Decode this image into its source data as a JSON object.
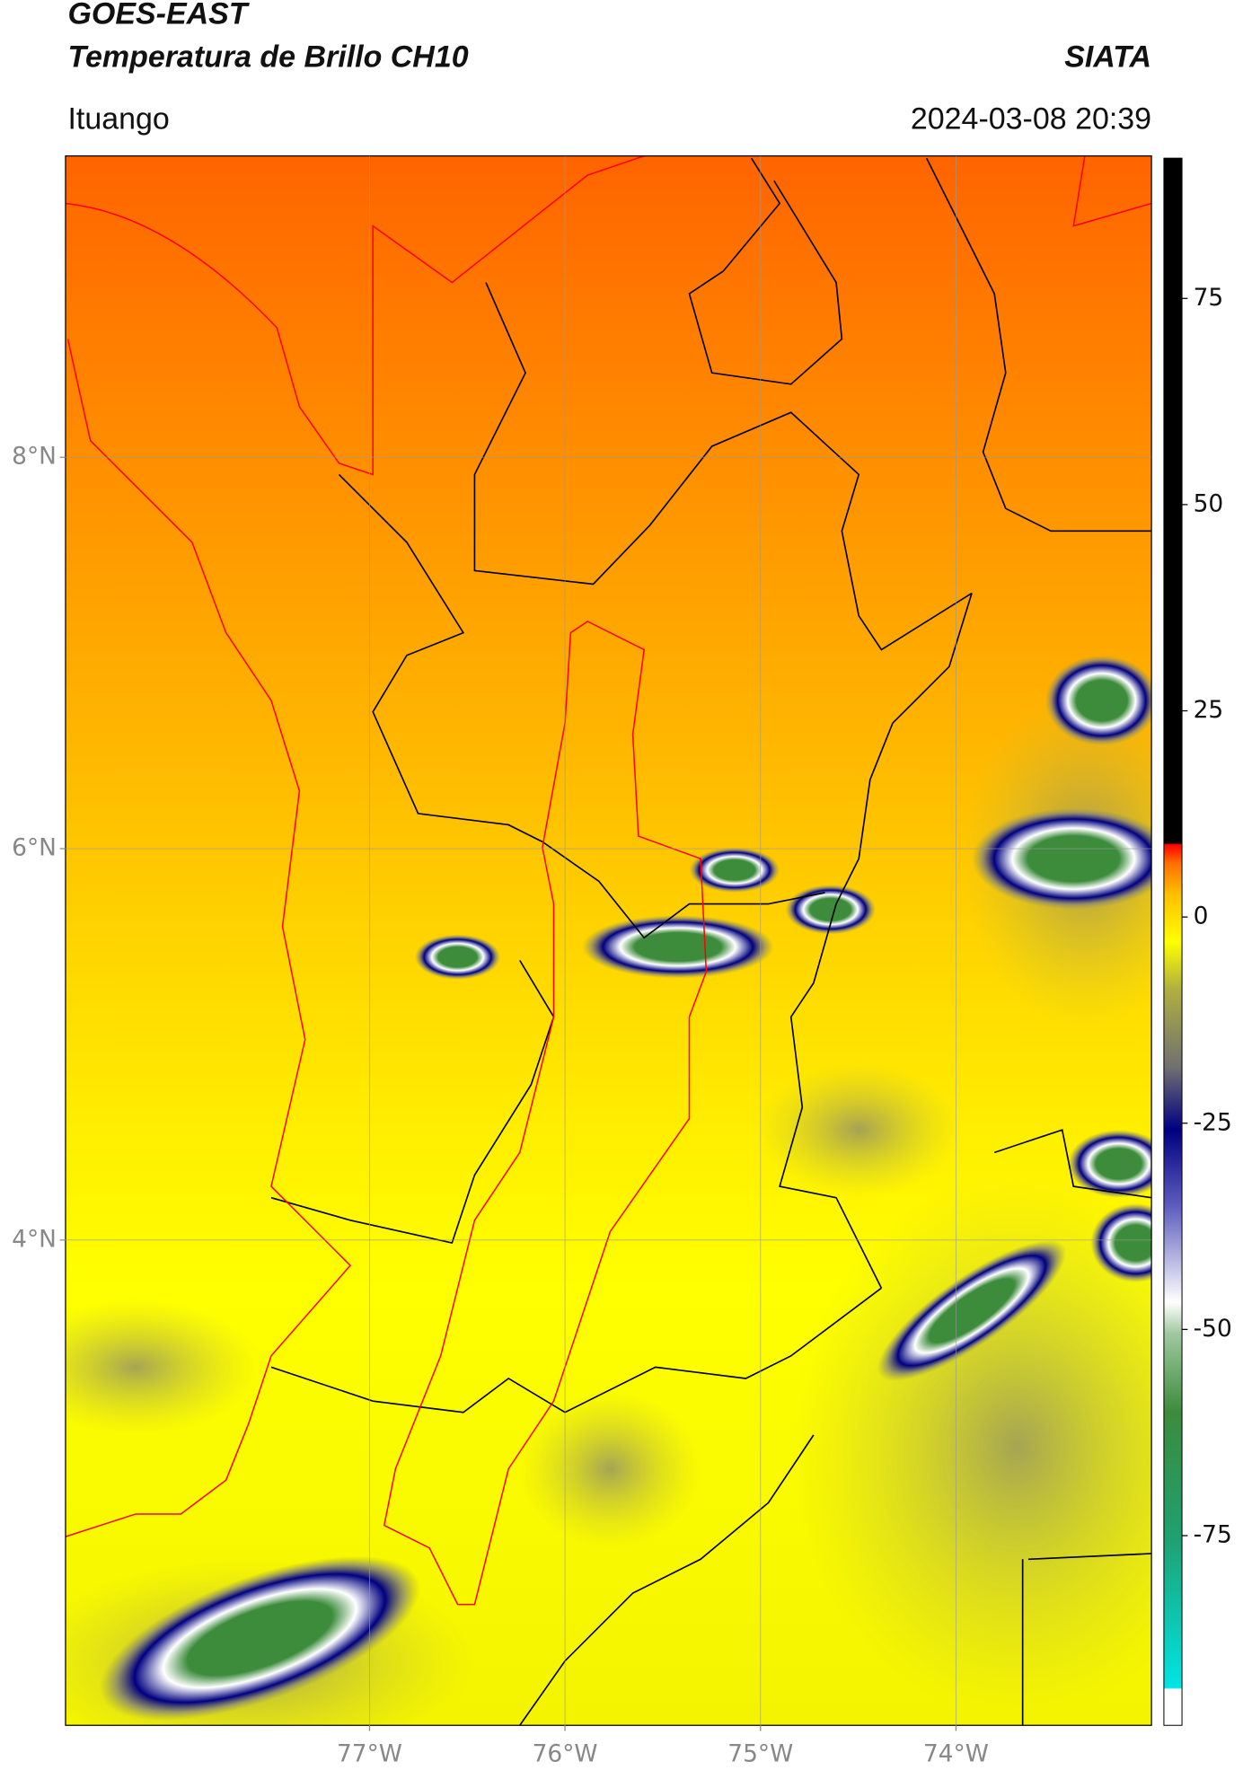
{
  "header": {
    "title": "GOES-EAST",
    "subtitle": "Temperatura de Brillo CH10",
    "source": "SIATA",
    "location": "Ituango",
    "datetime": "2024-03-08 20:39"
  },
  "map": {
    "xlim": [
      -78.555,
      -73.0
    ],
    "ylim": [
      1.52,
      9.54
    ],
    "xticks": [
      {
        "value": -77,
        "label": "77°W"
      },
      {
        "value": -76,
        "label": "76°W"
      },
      {
        "value": -75,
        "label": "75°W"
      },
      {
        "value": -74,
        "label": "74°W"
      }
    ],
    "yticks": [
      {
        "value": 4,
        "label": "4°N"
      },
      {
        "value": 6,
        "label": "6°N"
      },
      {
        "value": 8,
        "label": "8°N"
      }
    ],
    "grid": true
  },
  "colorbar": {
    "lim": [
      -98,
      92
    ],
    "ticks": [
      -75,
      -50,
      -25,
      0,
      25,
      50,
      75
    ]
  }
}
